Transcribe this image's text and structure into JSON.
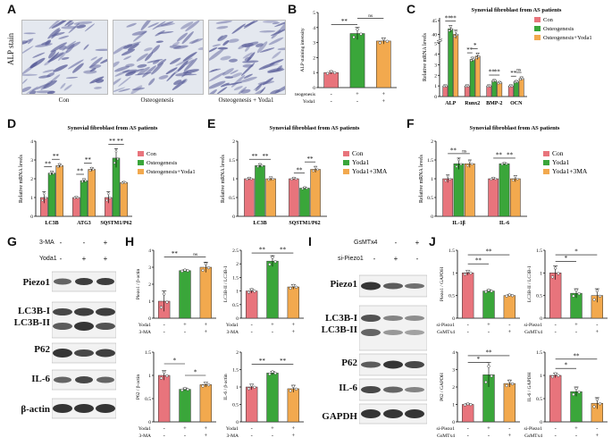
{
  "colors": {
    "con": "#e8747c",
    "osteo": "#3aa63a",
    "yoda": "#f2a94e",
    "band": "#2a2a2a",
    "blotbg": "#f2f2f2",
    "microbg": "#e4e8ef",
    "cell": "#5b5f9a"
  },
  "panels": {
    "A": "A",
    "B": "B",
    "C": "C",
    "D": "D",
    "E": "E",
    "F": "F",
    "G": "G",
    "H": "H",
    "I": "I",
    "J": "J"
  },
  "panel_a": {
    "title": "ALP stain",
    "captions": [
      "Con",
      "Osteogenesis",
      "Osteogenesis + Yoda1"
    ]
  },
  "panel_g": {
    "conditions": [
      {
        "name": "3-MA",
        "signs": [
          "-",
          "-",
          "+"
        ]
      },
      {
        "name": "Yoda1",
        "signs": [
          "-",
          "+",
          "+"
        ]
      }
    ],
    "rows": [
      "Piezo1",
      "LC3B-I\nLC3B-II",
      "P62",
      "IL-6",
      "β-actin"
    ]
  },
  "panel_i": {
    "conditions": [
      {
        "name": "GsMTx4",
        "signs": [
          "-",
          "-",
          "+"
        ]
      },
      {
        "name": "si-Piezo1",
        "signs": [
          "-",
          "+",
          "-"
        ]
      }
    ],
    "rows": [
      "Piezo1",
      "LC3B-I\nLC3B-II",
      "P62",
      "IL-6",
      "GAPDH"
    ]
  },
  "chart_data": [
    {
      "id": "B",
      "type": "bar",
      "title": "",
      "ylabel": "ALP staining intensity",
      "ylim": [
        0,
        5
      ],
      "yticks": [
        0,
        1,
        2,
        3,
        4,
        5
      ],
      "categories": [
        "1",
        "2",
        "3"
      ],
      "values": [
        1.0,
        3.6,
        3.1
      ],
      "errors": [
        0.1,
        0.4,
        0.2
      ],
      "colorKeys": [
        "con",
        "osteo",
        "yoda"
      ],
      "sig": [
        {
          "a": 0,
          "b": 1,
          "t": "**",
          "y": 4.2
        },
        {
          "a": 1,
          "b": 2,
          "t": "ns",
          "y": 4.6
        }
      ],
      "conditions": [
        {
          "name": "Osteogenesis",
          "signs": [
            "-",
            "+",
            "+"
          ]
        },
        {
          "name": "Yoda1",
          "signs": [
            "-",
            "-",
            "+"
          ]
        }
      ]
    },
    {
      "id": "C",
      "type": "bar",
      "title": "Synovial fibroblast from AS patients",
      "ylabel": "Relative mRNA levels",
      "ylim": [
        0,
        5
      ],
      "yticks": [
        0,
        1,
        2,
        3,
        4,
        5,
        40,
        45
      ],
      "break": {
        "low": 5,
        "high": [
          38,
          46
        ]
      },
      "categories": [
        "ALP",
        "Runx2",
        "BMP-2",
        "OCN"
      ],
      "series": [
        {
          "name": "Con",
          "colorKey": "con",
          "values": [
            1.0,
            1.0,
            1.0,
            1.0
          ]
        },
        {
          "name": "Osteogenesis",
          "colorKey": "osteo",
          "values": [
            42,
            3.5,
            1.5,
            1.4
          ]
        },
        {
          "name": "Osteogenesis+Yoda1",
          "colorKey": "yoda",
          "values": [
            40,
            3.8,
            1.3,
            1.7
          ]
        }
      ],
      "errors": [
        [
          0.1,
          0.1,
          0.1,
          0.1
        ],
        [
          1.2,
          0.2,
          0.1,
          0.1
        ],
        [
          1.5,
          0.3,
          0.1,
          0.15
        ]
      ],
      "sig": [
        [
          {
            "a": 0,
            "b": 1,
            "t": "**"
          },
          {
            "a": 1,
            "b": 2,
            "t": "**"
          }
        ],
        [
          {
            "a": 0,
            "b": 1,
            "t": "**"
          },
          {
            "a": 1,
            "b": 2,
            "t": "*"
          }
        ],
        [
          {
            "a": 0,
            "b": 1,
            "t": "**"
          },
          {
            "a": 1,
            "b": 2,
            "t": "**"
          }
        ],
        [
          {
            "a": 0,
            "b": 1,
            "t": "**"
          },
          {
            "a": 1,
            "b": 2,
            "t": "ns"
          }
        ]
      ],
      "legend": [
        "Con",
        "Osteogenesis",
        "Osteogenesis+Yoda1"
      ]
    },
    {
      "id": "D",
      "type": "bar",
      "title": "Synovial fibroblast from AS patients",
      "ylabel": "Relative mRNA levels",
      "ylim": [
        0,
        4
      ],
      "yticks": [
        0,
        1,
        2,
        3,
        4
      ],
      "categories": [
        "LC3B",
        "ATG3",
        "SQSTM1/P62"
      ],
      "series": [
        {
          "name": "Con",
          "colorKey": "con",
          "values": [
            1.0,
            1.0,
            1.0
          ]
        },
        {
          "name": "Osteogenesis",
          "colorKey": "osteo",
          "values": [
            2.3,
            1.9,
            3.1
          ]
        },
        {
          "name": "Osteogenesis+Yoda1",
          "colorKey": "yoda",
          "values": [
            2.7,
            2.5,
            1.8
          ]
        }
      ],
      "errors": [
        [
          0.3,
          0.05,
          0.3
        ],
        [
          0.1,
          0.1,
          0.5
        ],
        [
          0.1,
          0.1,
          0.05
        ]
      ],
      "sig": [
        [
          {
            "a": 0,
            "b": 1,
            "t": "**"
          },
          {
            "a": 1,
            "b": 2,
            "t": "**"
          }
        ],
        [
          {
            "a": 0,
            "b": 1,
            "t": "**"
          },
          {
            "a": 1,
            "b": 2,
            "t": "**"
          }
        ],
        [
          {
            "a": 0,
            "b": 1,
            "t": "**"
          },
          {
            "a": 1,
            "b": 2,
            "t": "**"
          }
        ]
      ],
      "legend": [
        "Con",
        "Osteogenesis",
        "Osteogenesis+Yoda1"
      ]
    },
    {
      "id": "E",
      "type": "bar",
      "title": "Synovial fibroblast from AS patients",
      "ylabel": "Relative mRNA levels",
      "ylim": [
        0,
        2.0
      ],
      "yticks": [
        0,
        0.5,
        1.0,
        1.5,
        2.0
      ],
      "categories": [
        "LC3B",
        "SQSTM1/P62"
      ],
      "series": [
        {
          "name": "Con",
          "colorKey": "con",
          "values": [
            1.0,
            1.0
          ]
        },
        {
          "name": "Yoda1",
          "colorKey": "osteo",
          "values": [
            1.35,
            0.75
          ]
        },
        {
          "name": "Yoda1+3MA",
          "colorKey": "yoda",
          "values": [
            1.0,
            1.25
          ]
        }
      ],
      "errors": [
        [
          0.03,
          0.03
        ],
        [
          0.05,
          0.03
        ],
        [
          0.05,
          0.08
        ]
      ],
      "sig": [
        [
          {
            "a": 0,
            "b": 1,
            "t": "**"
          },
          {
            "a": 1,
            "b": 2,
            "t": "**"
          }
        ],
        [
          {
            "a": 0,
            "b": 1,
            "t": "**"
          },
          {
            "a": 1,
            "b": 2,
            "t": "**"
          }
        ]
      ],
      "legend": [
        "Con",
        "Yoda1",
        "Yoda1+3MA"
      ]
    },
    {
      "id": "F",
      "type": "bar",
      "title": "Synovial fibroblast from AS patients",
      "ylabel": "Relative mRNA levels",
      "ylim": [
        0,
        2.0
      ],
      "yticks": [
        0,
        0.5,
        1.0,
        1.5,
        2.0
      ],
      "categories": [
        "IL-1β",
        "IL-6"
      ],
      "series": [
        {
          "name": "Con",
          "colorKey": "con",
          "values": [
            1.0,
            1.0
          ]
        },
        {
          "name": "Yoda1",
          "colorKey": "osteo",
          "values": [
            1.4,
            1.4
          ]
        },
        {
          "name": "Yoda1+3MA",
          "colorKey": "yoda",
          "values": [
            1.4,
            1.0
          ]
        }
      ],
      "errors": [
        [
          0.1,
          0.03
        ],
        [
          0.15,
          0.03
        ],
        [
          0.1,
          0.08
        ]
      ],
      "sig": [
        [
          {
            "a": 0,
            "b": 1,
            "t": "**"
          },
          {
            "a": 1,
            "b": 2,
            "t": "ns"
          }
        ],
        [
          {
            "a": 0,
            "b": 1,
            "t": "**"
          },
          {
            "a": 1,
            "b": 2,
            "t": "**"
          }
        ]
      ],
      "legend": [
        "Con",
        "Yoda1",
        "Yoda1+3MA"
      ]
    },
    {
      "id": "H1",
      "type": "bar",
      "ylabel": "Piezo1 / β-actin",
      "ylim": [
        0,
        4
      ],
      "yticks": [
        0,
        1,
        2,
        3,
        4
      ],
      "categories": [
        "1",
        "2",
        "3"
      ],
      "values": [
        1.0,
        2.8,
        3.0
      ],
      "errors": [
        0.6,
        0.05,
        0.3
      ],
      "colorKeys": [
        "con",
        "osteo",
        "yoda"
      ],
      "sig": [
        {
          "a": 0,
          "b": 1,
          "t": "**",
          "y": 3.6
        },
        {
          "a": 1,
          "b": 2,
          "t": "ns",
          "y": 3.6
        }
      ],
      "conditions": [
        {
          "name": "Yoda1",
          "signs": [
            "-",
            "+",
            "+"
          ]
        },
        {
          "name": "3-MA",
          "signs": [
            "-",
            "-",
            "+"
          ]
        }
      ]
    },
    {
      "id": "H2",
      "type": "bar",
      "ylabel": "LC3B-II / LC3B-I",
      "ylim": [
        0,
        2.5
      ],
      "yticks": [
        0,
        0.5,
        1.0,
        1.5,
        2.0,
        2.5
      ],
      "categories": [
        "1",
        "2",
        "3"
      ],
      "values": [
        1.0,
        2.1,
        1.15
      ],
      "errors": [
        0.08,
        0.2,
        0.08
      ],
      "colorKeys": [
        "con",
        "osteo",
        "yoda"
      ],
      "sig": [
        {
          "a": 0,
          "b": 1,
          "t": "**",
          "y": 2.4
        },
        {
          "a": 1,
          "b": 2,
          "t": "**",
          "y": 2.4
        }
      ],
      "conditions": [
        {
          "name": "Yoda1",
          "signs": [
            "-",
            "+",
            "+"
          ]
        },
        {
          "name": "3-MA",
          "signs": [
            "-",
            "-",
            "+"
          ]
        }
      ]
    },
    {
      "id": "H3",
      "type": "bar",
      "ylabel": "P62 / β-actin",
      "ylim": [
        0,
        1.5
      ],
      "yticks": [
        0,
        0.5,
        1.0,
        1.5
      ],
      "categories": [
        "1",
        "2",
        "3"
      ],
      "values": [
        1.0,
        0.7,
        0.8
      ],
      "errors": [
        0.1,
        0.03,
        0.05
      ],
      "colorKeys": [
        "con",
        "osteo",
        "yoda"
      ],
      "sig": [
        {
          "a": 0,
          "b": 1,
          "t": "*",
          "y": 1.25
        },
        {
          "a": 1,
          "b": 2,
          "t": "*",
          "y": 1.0
        }
      ],
      "conditions": [
        {
          "name": "Yoda1",
          "signs": [
            "-",
            "+",
            "+"
          ]
        },
        {
          "name": "3-MA",
          "signs": [
            "-",
            "-",
            "+"
          ]
        }
      ]
    },
    {
      "id": "H4",
      "type": "bar",
      "ylabel": "IL-6 / β-actin",
      "ylim": [
        0,
        2.0
      ],
      "yticks": [
        0,
        0.5,
        1.0,
        1.5,
        2.0
      ],
      "categories": [
        "1",
        "2",
        "3"
      ],
      "values": [
        1.0,
        1.4,
        0.95
      ],
      "errors": [
        0.08,
        0.05,
        0.1
      ],
      "colorKeys": [
        "con",
        "osteo",
        "yoda"
      ],
      "sig": [
        {
          "a": 0,
          "b": 1,
          "t": "**",
          "y": 1.65
        },
        {
          "a": 1,
          "b": 2,
          "t": "**",
          "y": 1.65
        }
      ],
      "conditions": [
        {
          "name": "Yoda1",
          "signs": [
            "-",
            "+",
            "+"
          ]
        },
        {
          "name": "3-MA",
          "signs": [
            "-",
            "-",
            "+"
          ]
        }
      ]
    },
    {
      "id": "J1",
      "type": "bar",
      "ylabel": "Piezo1 / GAPDH",
      "ylim": [
        0,
        1.5
      ],
      "yticks": [
        0,
        0.5,
        1.0,
        1.5
      ],
      "categories": [
        "1",
        "2",
        "3"
      ],
      "values": [
        1.0,
        0.6,
        0.5
      ],
      "errors": [
        0.05,
        0.03,
        0.02
      ],
      "colorKeys": [
        "con",
        "osteo",
        "yoda"
      ],
      "sig": [
        {
          "a": 0,
          "b": 1,
          "t": "**",
          "y": 1.2
        },
        {
          "a": 0,
          "b": 2,
          "t": "**",
          "y": 1.4
        }
      ],
      "conditions": [
        {
          "name": "si-Piezo1",
          "signs": [
            "-",
            "+",
            "-"
          ]
        },
        {
          "name": "GsMTx4",
          "signs": [
            "-",
            "-",
            "+"
          ]
        }
      ]
    },
    {
      "id": "J2",
      "type": "bar",
      "ylabel": "LC3B-II / LC3B-I",
      "ylim": [
        0,
        1.5
      ],
      "yticks": [
        0,
        0.5,
        1.0,
        1.5
      ],
      "categories": [
        "1",
        "2",
        "3"
      ],
      "values": [
        1.0,
        0.55,
        0.5
      ],
      "errors": [
        0.15,
        0.1,
        0.15
      ],
      "colorKeys": [
        "con",
        "osteo",
        "yoda"
      ],
      "sig": [
        {
          "a": 0,
          "b": 1,
          "t": "*",
          "y": 1.25
        },
        {
          "a": 0,
          "b": 2,
          "t": "*",
          "y": 1.4
        }
      ],
      "conditions": [
        {
          "name": "si-Piezo1",
          "signs": [
            "-",
            "+",
            "-"
          ]
        },
        {
          "name": "GsMTx4",
          "signs": [
            "-",
            "-",
            "+"
          ]
        }
      ]
    },
    {
      "id": "J3",
      "type": "bar",
      "ylabel": "P62 / GAPDH",
      "ylim": [
        0,
        4
      ],
      "yticks": [
        0,
        1,
        2,
        3,
        4
      ],
      "categories": [
        "1",
        "2",
        "3"
      ],
      "values": [
        1.0,
        2.7,
        2.2
      ],
      "errors": [
        0.05,
        0.7,
        0.2
      ],
      "colorKeys": [
        "con",
        "osteo",
        "yoda"
      ],
      "sig": [
        {
          "a": 0,
          "b": 1,
          "t": "*",
          "y": 3.4
        },
        {
          "a": 0,
          "b": 2,
          "t": "**",
          "y": 3.8
        }
      ],
      "conditions": [
        {
          "name": "si-Piezo1",
          "signs": [
            "-",
            "+",
            "-"
          ]
        },
        {
          "name": "GsMTx4",
          "signs": [
            "-",
            "-",
            "+"
          ]
        }
      ]
    },
    {
      "id": "J4",
      "type": "bar",
      "ylabel": "IL-6 / GAPDH",
      "ylim": [
        0,
        1.5
      ],
      "yticks": [
        0,
        0.5,
        1.0,
        1.5
      ],
      "categories": [
        "1",
        "2",
        "3"
      ],
      "values": [
        1.0,
        0.65,
        0.4
      ],
      "errors": [
        0.05,
        0.1,
        0.12
      ],
      "colorKeys": [
        "con",
        "osteo",
        "yoda"
      ],
      "sig": [
        {
          "a": 0,
          "b": 1,
          "t": "*",
          "y": 1.15
        },
        {
          "a": 0,
          "b": 2,
          "t": "**",
          "y": 1.35
        }
      ],
      "conditions": [
        {
          "name": "si-Piezo1",
          "signs": [
            "-",
            "+",
            "-"
          ]
        },
        {
          "name": "GsMTx4",
          "signs": [
            "-",
            "-",
            "+"
          ]
        }
      ]
    }
  ]
}
